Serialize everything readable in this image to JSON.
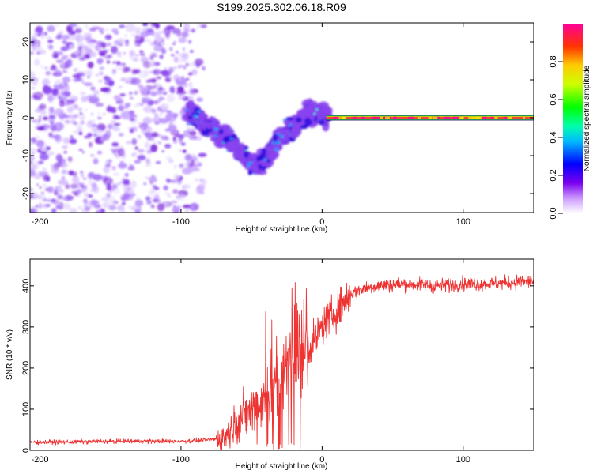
{
  "chart_data": [
    {
      "type": "heatmap",
      "title": "S199.2025.302.06.18.R09",
      "xlabel": "Height of straight line (km)",
      "ylabel": "Frequency (Hz)",
      "xlim": [
        -207,
        150
      ],
      "ylim": [
        -25,
        25
      ],
      "xticks": [
        -200,
        -100,
        0,
        100
      ],
      "yticks": [
        20,
        10,
        0,
        -10,
        -20
      ],
      "xtick_labels": [
        "-200",
        "-100",
        "0",
        "100"
      ],
      "ytick_labels": [
        "20",
        "10",
        "0",
        "-10",
        "-20"
      ],
      "colorbar": {
        "label": "Normalized spectral amplitude",
        "range": [
          0,
          1
        ],
        "ticks": [
          0.0,
          0.2,
          0.4,
          0.6,
          0.8
        ],
        "tick_labels": [
          "0.0",
          "0.2",
          "0.4",
          "0.6",
          "0.8"
        ]
      },
      "features": [
        {
          "region": "x from -207 to -95",
          "description": "scattered low-amplitude purple noise over all frequencies"
        },
        {
          "region": "x from -90 to 0",
          "description": "patchy blue/cyan blobs descending from 0 Hz to about -15 Hz near x=-50 then rising back to 0 Hz"
        },
        {
          "region": "x from 0 to 150",
          "description": "strong narrow band at about 0 Hz, amplitude near 1.0"
        }
      ],
      "centerline": {
        "x": [
          -92,
          -85,
          -78,
          -72,
          -66,
          -60,
          -55,
          -50,
          -45,
          -40,
          -35,
          -30,
          -25,
          -20,
          -15,
          -10,
          -5,
          0,
          5,
          10
        ],
        "y": [
          1,
          -1,
          -3,
          -5,
          -6,
          -8,
          -10,
          -12,
          -13,
          -11,
          -8,
          -5,
          -4,
          -3,
          -1,
          0.5,
          1,
          1,
          0.5,
          0
        ]
      },
      "band": {
        "x_start": 5,
        "x_end": 150,
        "frequency": 0,
        "amplitude": 1.0
      }
    },
    {
      "type": "line",
      "xlabel": "Height of straight line (km)",
      "ylabel": "SNR (10 * v/v)",
      "xlim": [
        -207,
        150
      ],
      "ylim": [
        0,
        465
      ],
      "xticks": [
        -200,
        -100,
        0,
        100
      ],
      "yticks": [
        0,
        100,
        200,
        300,
        400
      ],
      "xtick_labels": [
        "-200",
        "-100",
        "0",
        "100"
      ],
      "ytick_labels": [
        "0",
        "100",
        "200",
        "300",
        "400"
      ],
      "series": [
        {
          "name": "SNR",
          "color": "#ee3333",
          "x": [
            -207,
            -180,
            -150,
            -120,
            -100,
            -80,
            -70,
            -60,
            -50,
            -40,
            -30,
            -25,
            -20,
            -15,
            -10,
            -5,
            0,
            10,
            20,
            30,
            40,
            60,
            80,
            100,
            120,
            140,
            150
          ],
          "y": [
            20,
            20,
            22,
            22,
            22,
            25,
            30,
            70,
            100,
            120,
            160,
            200,
            220,
            240,
            250,
            270,
            300,
            340,
            380,
            395,
            400,
            405,
            400,
            405,
            405,
            410,
            410
          ]
        }
      ]
    }
  ],
  "colors": {
    "line": "#ee3333",
    "background": "#ffffff",
    "axis": "#000000",
    "noise": "#9966ee",
    "band": "#ff3344"
  }
}
